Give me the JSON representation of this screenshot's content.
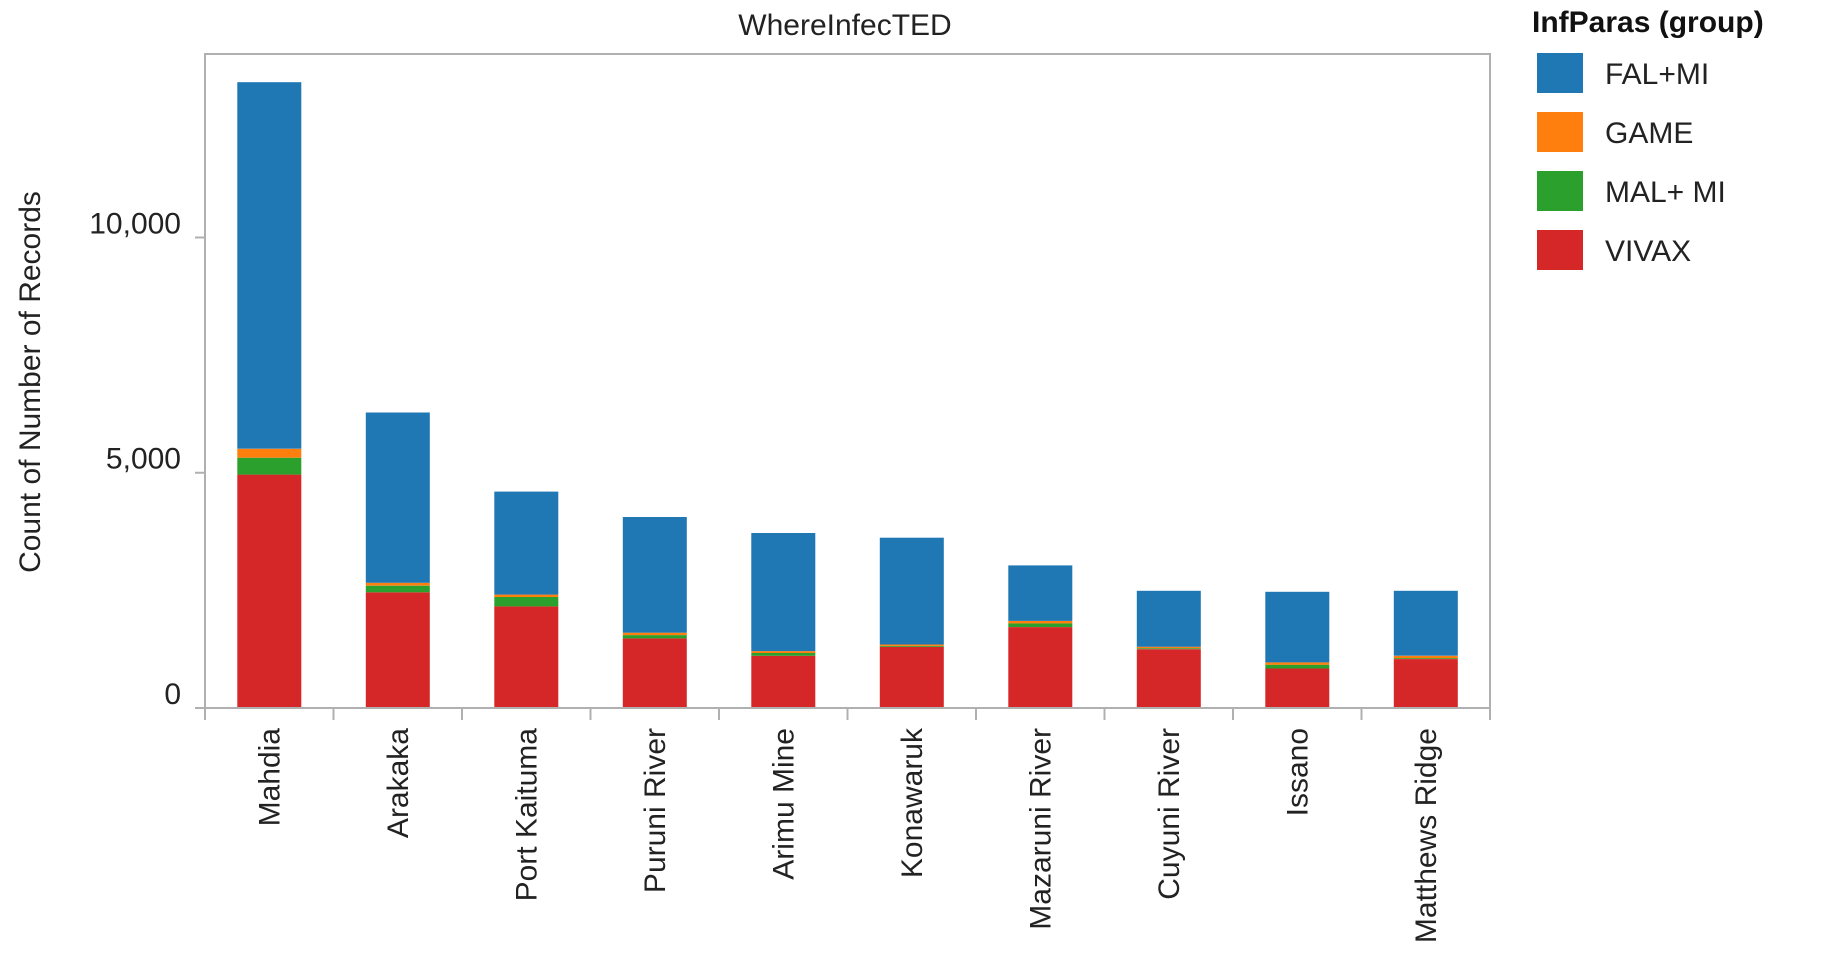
{
  "chart_data": {
    "type": "bar",
    "stacked": true,
    "title": "WhereInfecTED",
    "xlabel": "",
    "ylabel": "Count of Number of Records",
    "ylim": [
      0,
      13900
    ],
    "yticks": [
      0,
      5000,
      10000
    ],
    "ytick_labels": [
      "0",
      "5,000",
      "10,000"
    ],
    "grid": false,
    "legend_position": "top-right",
    "legend_title": "InfParas (group)",
    "categories": [
      "Mahdia",
      "Arakaka",
      "Port Kaituma",
      "Puruni River",
      "Arimu Mine",
      "Konawaruk",
      "Mazaruni River",
      "Cuyuni River",
      "Issano",
      "Matthews Ridge"
    ],
    "series": [
      {
        "name": "VIVAX",
        "color": "#d62728",
        "values": [
          4960,
          2460,
          2160,
          1480,
          1110,
          1300,
          1720,
          1250,
          840,
          1040
        ]
      },
      {
        "name": "MAL+ MI",
        "color": "#2ca02c",
        "values": [
          360,
          140,
          200,
          70,
          60,
          20,
          80,
          20,
          80,
          20
        ]
      },
      {
        "name": "GAME",
        "color": "#ff7f0e",
        "values": [
          190,
          60,
          50,
          50,
          40,
          30,
          50,
          30,
          50,
          50
        ]
      },
      {
        "name": "FAL+MI",
        "color": "#1f77b4",
        "values": [
          7790,
          3620,
          2190,
          2460,
          2510,
          2270,
          1180,
          1190,
          1500,
          1380
        ]
      }
    ]
  }
}
